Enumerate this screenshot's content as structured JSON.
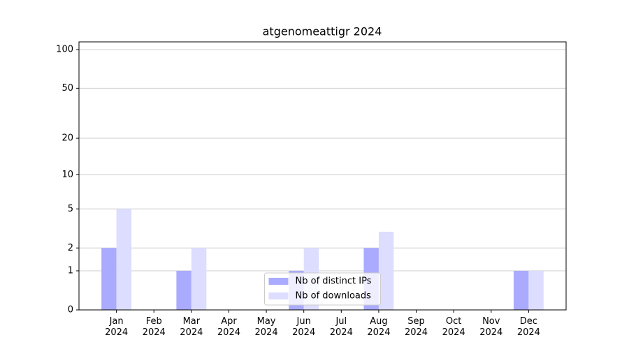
{
  "chart_data": {
    "type": "bar",
    "title": "atgenomeattigr 2024",
    "categories": [
      "Jan\n2024",
      "Feb\n2024",
      "Mar\n2024",
      "Apr\n2024",
      "May\n2024",
      "Jun\n2024",
      "Jul\n2024",
      "Aug\n2024",
      "Sep\n2024",
      "Oct\n2024",
      "Nov\n2024",
      "Dec\n2024"
    ],
    "series": [
      {
        "name": "Nb of distinct IPs",
        "color": "#aaaaff",
        "values": [
          2,
          0,
          1,
          0,
          0,
          1,
          0,
          2,
          0,
          0,
          0,
          1
        ]
      },
      {
        "name": "Nb of downloads",
        "color": "#ddddff",
        "values": [
          5,
          0,
          2,
          0,
          0,
          2,
          0,
          3,
          0,
          0,
          0,
          1
        ]
      }
    ],
    "yscale": "log1p",
    "ylim": [
      0,
      115
    ],
    "yticks": [
      0,
      1,
      2,
      5,
      10,
      20,
      50,
      100
    ],
    "grid": true,
    "legend": "lower center"
  }
}
